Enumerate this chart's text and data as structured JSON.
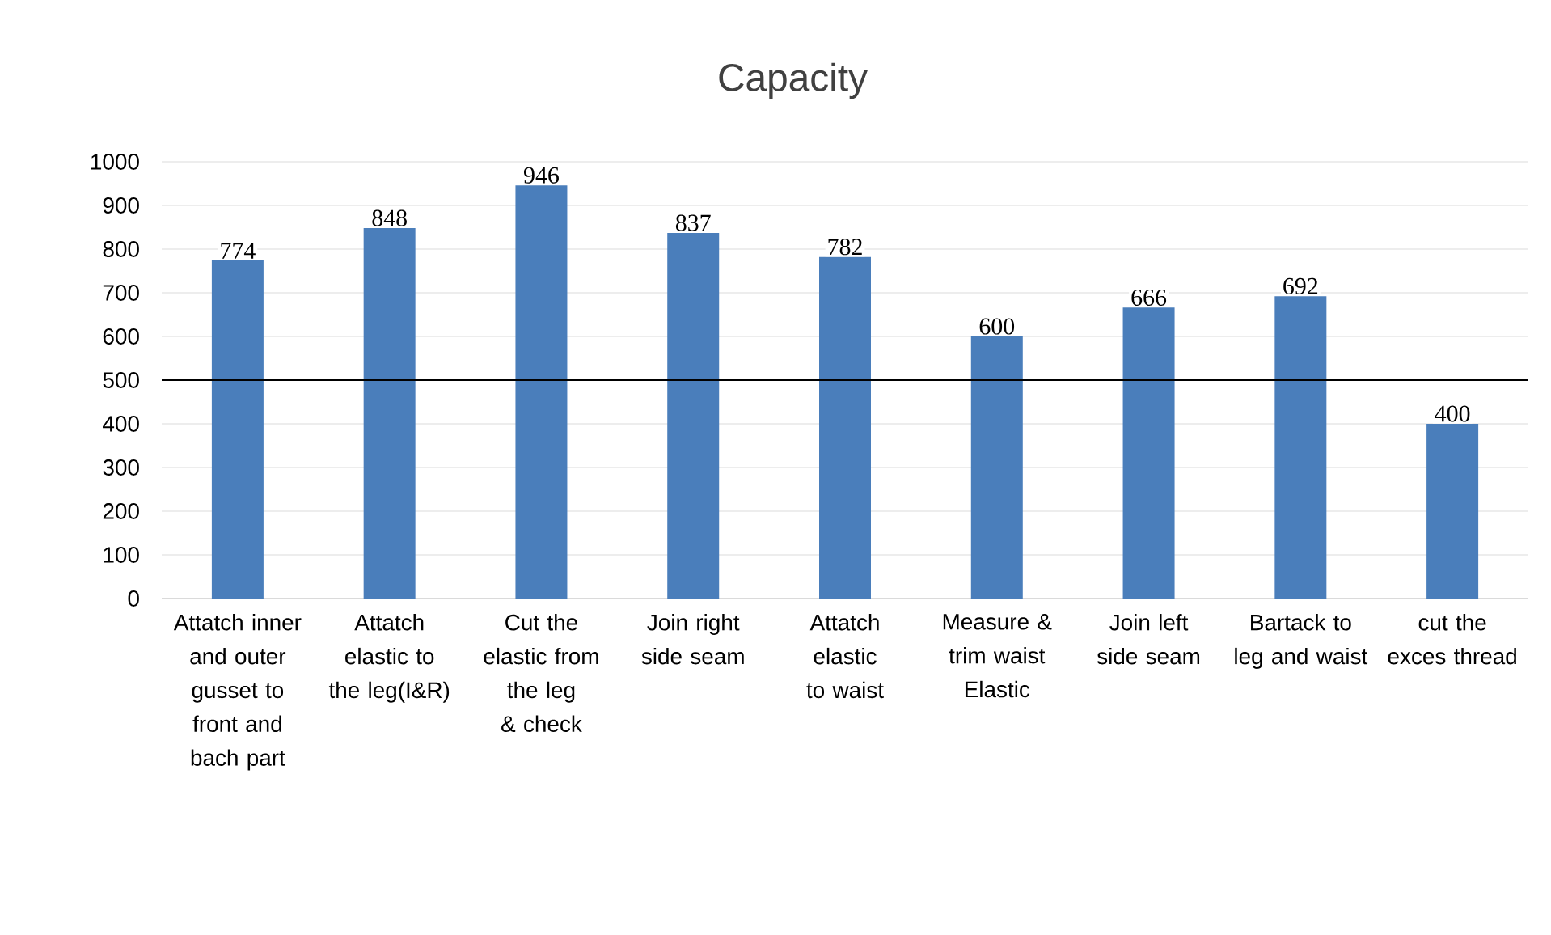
{
  "chart_data": {
    "type": "bar",
    "title": "Capacity",
    "categories": [
      "Attatch inner and outer gusset to front and bach part",
      "Attatch elastic to the leg(I&R)",
      "Cut the elastic from the leg & check",
      "Join right side seam",
      "Attatch elastic to waist",
      "Measure & trim waist Elastic",
      "Join left side seam",
      "Bartack to leg and waist",
      "cut the exces thread"
    ],
    "values": [
      774,
      848,
      946,
      837,
      782,
      600,
      666,
      692,
      400
    ],
    "color": "#4a7ebb",
    "data_labels": true,
    "ylim": [
      0,
      1000
    ],
    "yticks": [
      0,
      100,
      200,
      300,
      400,
      500,
      600,
      700,
      800,
      900,
      1000
    ],
    "grid": "y",
    "ref_lines": [
      {
        "axis": "y",
        "value": 500,
        "color": "#000000"
      }
    ]
  }
}
